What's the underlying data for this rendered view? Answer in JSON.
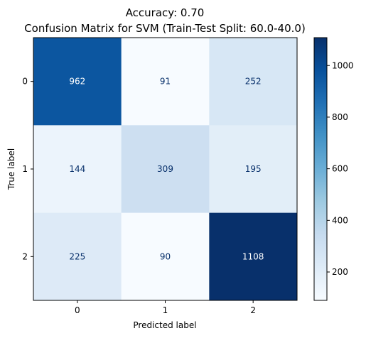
{
  "chart_data": {
    "type": "heatmap",
    "title": "Accuracy: 0.70",
    "subtitle": "Confusion Matrix for SVM (Train-Test Split: 60.0-40.0)",
    "xlabel": "Predicted label",
    "ylabel": "True label",
    "x_categories": [
      "0",
      "1",
      "2"
    ],
    "y_categories": [
      "0",
      "1",
      "2"
    ],
    "values": [
      [
        962,
        91,
        252
      ],
      [
        144,
        309,
        195
      ],
      [
        225,
        90,
        1108
      ]
    ],
    "colormap": "Blues",
    "colorbar": {
      "min": 90,
      "max": 1108,
      "ticks": [
        200,
        400,
        600,
        800,
        1000
      ]
    }
  }
}
